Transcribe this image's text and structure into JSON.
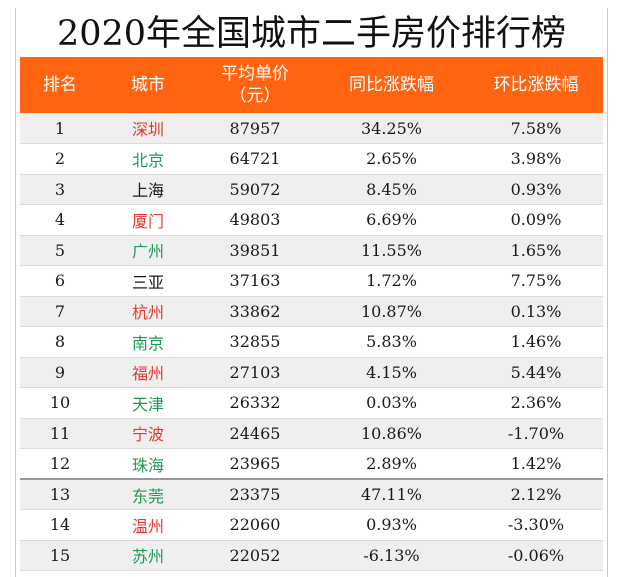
{
  "title": "2020年全国城市二手房价排行榜",
  "header": {
    "rank": "排名",
    "city": "城市",
    "price_line1": "平均单价",
    "price_line2": "（元）",
    "yoy": "同比涨跌幅",
    "mom": "环比涨跌幅"
  },
  "colors": {
    "header_bg": "#ff6410",
    "city_red": "#e53a2c",
    "city_green": "#1f9a55"
  },
  "rows": [
    {
      "rank": "1",
      "city": "深圳",
      "city_color": "red",
      "price": "87957",
      "yoy": "34.25%",
      "mom": "7.58%"
    },
    {
      "rank": "2",
      "city": "北京",
      "city_color": "green",
      "price": "64721",
      "yoy": "2.65%",
      "mom": "3.98%"
    },
    {
      "rank": "3",
      "city": "上海",
      "city_color": "black",
      "price": "59072",
      "yoy": "8.45%",
      "mom": "0.93%"
    },
    {
      "rank": "4",
      "city": "厦门",
      "city_color": "red",
      "price": "49803",
      "yoy": "6.69%",
      "mom": "0.09%"
    },
    {
      "rank": "5",
      "city": "广州",
      "city_color": "green",
      "price": "39851",
      "yoy": "11.55%",
      "mom": "1.65%"
    },
    {
      "rank": "6",
      "city": "三亚",
      "city_color": "black",
      "price": "37163",
      "yoy": "1.72%",
      "mom": "7.75%"
    },
    {
      "rank": "7",
      "city": "杭州",
      "city_color": "red",
      "price": "33862",
      "yoy": "10.87%",
      "mom": "0.13%"
    },
    {
      "rank": "8",
      "city": "南京",
      "city_color": "green",
      "price": "32855",
      "yoy": "5.83%",
      "mom": "1.46%"
    },
    {
      "rank": "9",
      "city": "福州",
      "city_color": "red",
      "price": "27103",
      "yoy": "4.15%",
      "mom": "5.44%"
    },
    {
      "rank": "10",
      "city": "天津",
      "city_color": "green",
      "price": "26332",
      "yoy": "0.03%",
      "mom": "2.36%"
    },
    {
      "rank": "11",
      "city": "宁波",
      "city_color": "red",
      "price": "24465",
      "yoy": "10.86%",
      "mom": "-1.70%"
    },
    {
      "rank": "12",
      "city": "珠海",
      "city_color": "green",
      "price": "23965",
      "yoy": "2.89%",
      "mom": "1.42%"
    },
    {
      "rank": "13",
      "city": "东莞",
      "city_color": "green",
      "price": "23375",
      "yoy": "47.11%",
      "mom": "2.12%"
    },
    {
      "rank": "14",
      "city": "温州",
      "city_color": "red",
      "price": "22060",
      "yoy": "0.93%",
      "mom": "-3.30%"
    },
    {
      "rank": "15",
      "city": "苏州",
      "city_color": "green",
      "price": "22052",
      "yoy": "-6.13%",
      "mom": "-0.06%"
    }
  ]
}
